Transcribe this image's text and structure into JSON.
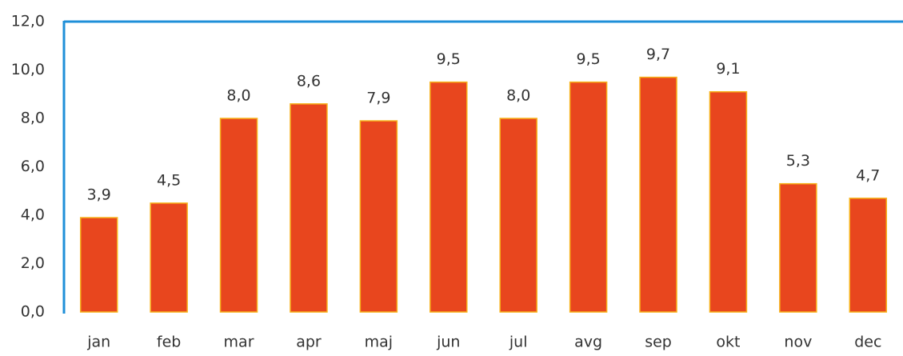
{
  "chart_data": {
    "type": "bar",
    "categories": [
      "jan",
      "feb",
      "mar",
      "apr",
      "maj",
      "jun",
      "jul",
      "avg",
      "sep",
      "okt",
      "nov",
      "dec"
    ],
    "values": [
      3.9,
      4.5,
      8.0,
      8.6,
      7.9,
      9.5,
      8.0,
      9.5,
      9.7,
      9.1,
      5.3,
      4.7
    ],
    "value_labels": [
      "3,9",
      "4,5",
      "8,0",
      "8,6",
      "7,9",
      "9,5",
      "8,0",
      "9,5",
      "9,7",
      "9,1",
      "5,3",
      "4,7"
    ],
    "color": "#e8461e",
    "ylim": [
      0,
      12
    ],
    "yticks": [
      {
        "value": 0,
        "label": "0,0"
      },
      {
        "value": 2,
        "label": "2,0"
      },
      {
        "value": 4,
        "label": "4,0"
      },
      {
        "value": 6,
        "label": "6,0"
      },
      {
        "value": 8,
        "label": "8,0"
      },
      {
        "value": 10,
        "label": "10,0"
      },
      {
        "value": 12,
        "label": "12,0"
      }
    ],
    "grid": false
  }
}
